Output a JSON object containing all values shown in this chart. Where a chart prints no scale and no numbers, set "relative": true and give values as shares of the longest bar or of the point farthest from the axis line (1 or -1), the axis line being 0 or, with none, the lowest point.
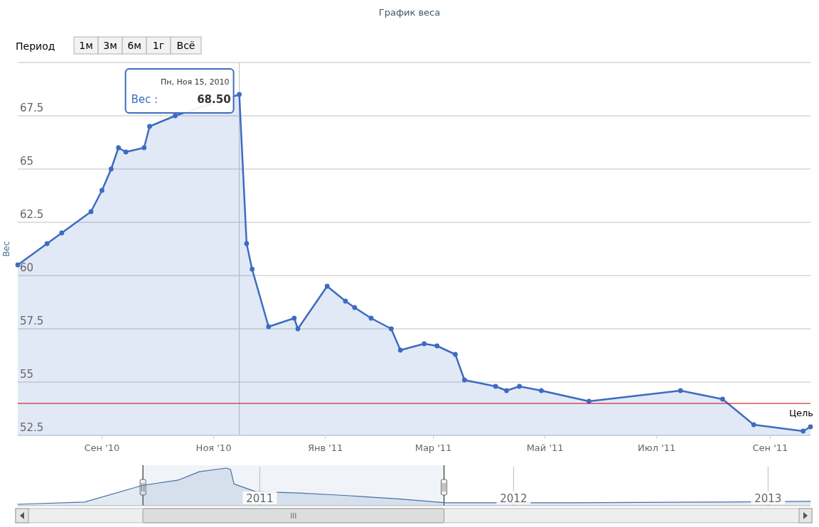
{
  "chart_data": [
    {
      "type": "area",
      "title": "График веса",
      "ylabel": "Вес",
      "annotations": [
        "Период",
        "1м",
        "3м",
        "6м",
        "1г",
        "Всё",
        {
          "text": "Пн, Ноя 15, 2010",
          "x": "2010-11-15",
          "y": 68.5
        }
      ],
      "x": [
        "2010-07-17",
        "2010-08-02",
        "2010-08-10",
        "2010-08-26",
        "2010-09-01",
        "2010-09-06",
        "2010-09-10",
        "2010-09-14",
        "2010-09-24",
        "2010-09-27",
        "2010-10-11",
        "2010-11-15",
        "2010-11-19",
        "2010-11-22",
        "2010-12-01",
        "2010-12-15",
        "2010-12-17",
        "2011-01-02",
        "2011-01-12",
        "2011-01-17",
        "2011-01-26",
        "2011-02-06",
        "2011-02-11",
        "2011-02-24",
        "2011-03-03",
        "2011-03-13",
        "2011-03-18",
        "2011-04-04",
        "2011-04-10",
        "2011-04-17",
        "2011-04-29",
        "2011-05-25",
        "2011-07-14",
        "2011-08-06",
        "2011-08-23",
        "2011-09-19",
        "2011-09-23"
      ],
      "series": [
        {
          "name": "Вес :",
          "color": "#3d6cc0",
          "values": [
            60.5,
            61.5,
            62.0,
            63.0,
            64.0,
            65.0,
            66.0,
            65.8,
            66.0,
            67.0,
            67.5,
            68.5,
            61.5,
            60.3,
            57.6,
            58.0,
            57.5,
            59.5,
            58.8,
            58.5,
            58.0,
            57.5,
            56.5,
            56.8,
            56.7,
            56.3,
            55.1,
            54.8,
            54.6,
            54.8,
            54.6,
            54.1,
            54.6,
            54.2,
            53.0,
            52.7,
            52.9
          ],
          "value_labels": [
            null,
            null,
            null,
            null,
            null,
            null,
            null,
            null,
            null,
            null,
            null,
            "68.50",
            null,
            null,
            null,
            null,
            null,
            null,
            null,
            null,
            null,
            null,
            null,
            null,
            null,
            null,
            null,
            null,
            null,
            null,
            null,
            null,
            null,
            null,
            null,
            null,
            null
          ]
        }
      ],
      "xlim": [
        "2010-07-17",
        "2011-09-23"
      ],
      "xticks": [
        {
          "value": "2010-09-01",
          "label": "Сен '10"
        },
        {
          "value": "2010-11-01",
          "label": "Ноя '10"
        },
        {
          "value": "2011-01-01",
          "label": "Янв '11"
        },
        {
          "value": "2011-03-01",
          "label": "Мар '11"
        },
        {
          "value": "2011-05-01",
          "label": "Май '11"
        },
        {
          "value": "2011-07-01",
          "label": "Июл '11"
        },
        {
          "value": "2011-09-01",
          "label": "Сен '11"
        }
      ],
      "ylim": [
        52.5,
        70
      ],
      "yticks": [
        52.5,
        55,
        57.5,
        60,
        62.5,
        65,
        67.5,
        {
          "value": 70,
          "label": null
        }
      ],
      "grid": "y",
      "marker": "circle",
      "ref_lines": [
        {
          "axis": "y",
          "value": 54,
          "label": "Цель",
          "color": "#cc0000"
        }
      ]
    },
    {
      "type": "area",
      "relative": true,
      "x": [
        "2010-01-18",
        "2010-04-24",
        "2010-07-16",
        "2010-09-06",
        "2010-10-06",
        "2010-11-14",
        "2010-11-20",
        "2010-11-25",
        "2010-12-26",
        "2011-02-26",
        "2011-04-28",
        "2011-07-19",
        "2011-09-26",
        "2012-03-20",
        "2012-10-12",
        "2013-03-03"
      ],
      "series": [
        {
          "color": "#4572a7",
          "values": [
            0,
            0.06,
            0.52,
            0.67,
            0.9,
            1,
            0.96,
            0.56,
            0.35,
            0.31,
            0.25,
            0.15,
            0.04,
            0.04,
            0.06,
            0.08
          ]
        }
      ],
      "xlim": [
        "2010-01-18",
        "2013-03-03"
      ],
      "xticks": [
        {
          "value": "2011-01-01",
          "label": "2011"
        },
        {
          "value": "2012-01-01",
          "label": "2012"
        },
        {
          "value": "2013-01-01",
          "label": "2013"
        }
      ],
      "bands": [
        {
          "axis": "x",
          "from": "2010-07-17",
          "to": "2011-09-23",
          "color": "#4572a7"
        }
      ],
      "grid": "x",
      "tick_labels": "x"
    }
  ]
}
